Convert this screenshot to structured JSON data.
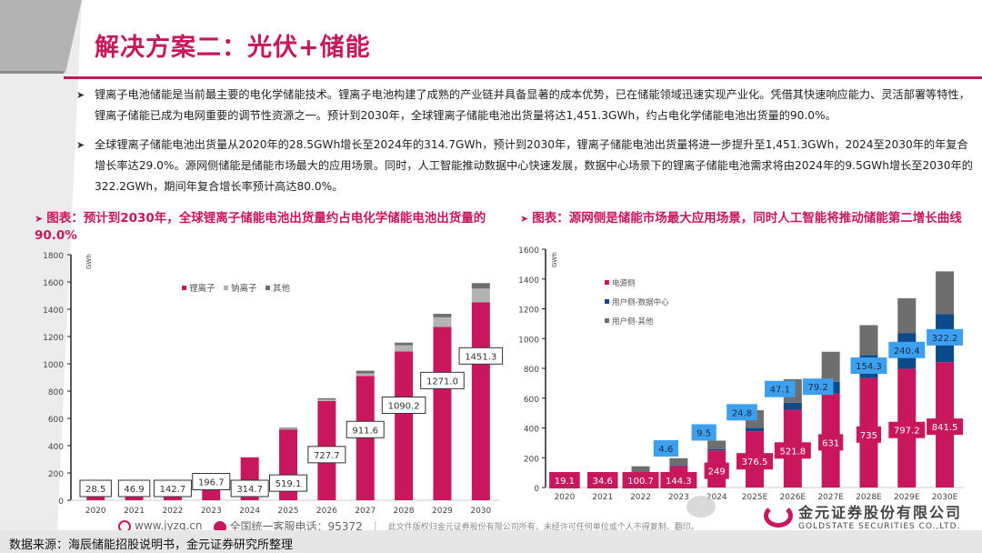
{
  "page": {
    "title": "解决方案二：光伏+储能",
    "bullets": [
      "锂离子电池储能是当前最主要的电化学储能技术。锂离子电池构建了成熟的产业链并具备显著的成本优势，已在储能领域迅速实现产业化。凭借其快速响应能力、灵活部署等特性，锂离子储能已成为电网重要的调节性资源之一。预计到2030年，全球锂离子储能电池出货量将达1,451.3GWh，约占电化学储能电池出货量的90.0%。",
      "全球锂离子储能电池出货量从2020年的28.5GWh增长至2024年的314.7GWh，预计到2030年，锂离子储能电池出货量将进一步提升至1,451.3GWh，2024至2030年的年复合增长率达29.0%。源网侧储能是储能市场最大的应用场景。同时，人工智能推动数据中心快速发展，数据中心场景下的锂离子储能电池需求将由2024年的9.5GWh增长至2030年的322.2GWh，期间年复合增长率预计高达80.0%。"
    ],
    "bullet_icon": "arrow-bullet-icon",
    "footer": {
      "website": "www.jyzq.cn",
      "hotline": "全国统一客服电话：95372",
      "copyright": "此文件版权归金元证券股份有限公司所有，未经许可任何单位或个人不得复制、翻印。",
      "source": "数据来源：海辰储能招股说明书，金元证券研究所整理",
      "logo_cn": "金元证券股份有限公司",
      "logo_en": "GOLDSTATE SECURITIES CO.,LTD."
    },
    "colors": {
      "accent": "#c8175d",
      "sodium": "#b3b3b3",
      "other": "#6e6e6e",
      "datacenter": "#0d4a8c",
      "label_blue": "#3ca0ef"
    }
  },
  "chart_data": [
    {
      "type": "bar",
      "stacked": true,
      "title": "图表：预计到2030年，全球锂离子储能电池出货量约占电化学储能电池出货量的90.0%",
      "unit_label": "GWh",
      "categories": [
        "2020",
        "2021",
        "2022",
        "2023",
        "2024",
        "2025",
        "2026",
        "2027",
        "2028",
        "2029",
        "2030"
      ],
      "series": [
        {
          "name": "锂离子",
          "values": [
            28.5,
            46.9,
            142.7,
            196.7,
            314.7,
            519.1,
            727.7,
            911.6,
            1090.2,
            1271.0,
            1451.3
          ]
        },
        {
          "name": "钠离子",
          "values": [
            0,
            0,
            0,
            0,
            0,
            8,
            10,
            18,
            45,
            70,
            100
          ]
        },
        {
          "name": "其他",
          "values": [
            0,
            0,
            0,
            0,
            0,
            5,
            10,
            20,
            20,
            25,
            40
          ]
        }
      ],
      "data_labels": [
        "28.5",
        "46.9",
        "142.7",
        "196.7",
        "314.7",
        "519.1",
        "727.7",
        "911.6",
        "1090.2",
        "1271.0",
        "1451.3"
      ],
      "ylim": [
        0,
        1800
      ],
      "yticks": [
        0,
        200,
        400,
        600,
        800,
        1000,
        1200,
        1400,
        1600,
        1800
      ],
      "legend": "top-right"
    },
    {
      "type": "bar",
      "stacked": true,
      "title": "图表：源网侧是储能市场最大应用场景，同时人工智能将推动储能第二增长曲线",
      "unit_label": "GWh",
      "categories": [
        "2020",
        "2021",
        "2022",
        "2023",
        "2024",
        "2025E",
        "2026E",
        "2027E",
        "2028E",
        "2029E",
        "2030E"
      ],
      "series": [
        {
          "name": "电源侧",
          "values": [
            19.1,
            34.6,
            100.7,
            144.3,
            249,
            376.5,
            521.8,
            631,
            735,
            797.2,
            841.5
          ]
        },
        {
          "name": "用户侧-数据中心",
          "values": [
            0,
            0,
            0,
            4.6,
            9.5,
            24.8,
            47.1,
            79.2,
            154.3,
            240.4,
            322.2
          ]
        },
        {
          "name": "用户侧-其他",
          "values": [
            9.4,
            12.3,
            42,
            47.8,
            56.2,
            117.8,
            158.8,
            201.4,
            200.9,
            233.4,
            287.6
          ]
        }
      ],
      "data_labels_main": [
        "19.1",
        "34.6",
        "100.7",
        "144.3",
        "249",
        "376.5",
        "521.8",
        "631",
        "735",
        "797.2",
        "841.5"
      ],
      "data_labels_dc": [
        "",
        "",
        "",
        "4.6",
        "9.5",
        "24.8",
        "47.1",
        "79.2",
        "154.3",
        "240.4",
        "322.2"
      ],
      "ylim": [
        0,
        1600
      ],
      "yticks": [
        0,
        200,
        400,
        600,
        800,
        1000,
        1200,
        1400,
        1600
      ],
      "legend": "top-left"
    }
  ]
}
